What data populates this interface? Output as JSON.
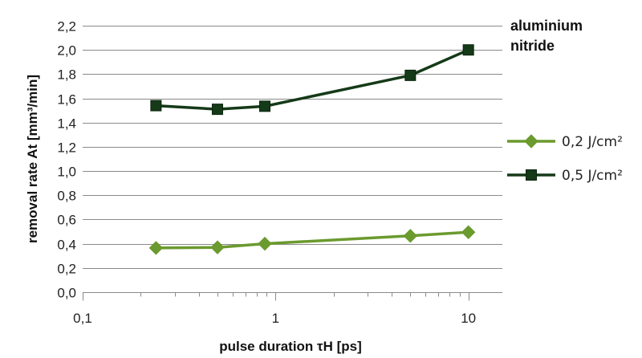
{
  "chart_data": {
    "type": "line",
    "xlabel": "pulse duration τH [ps]",
    "ylabel": "removal rate At [mm³/min]",
    "xscale": "log",
    "xlim": [
      0.1,
      15
    ],
    "ylim": [
      0.0,
      2.2
    ],
    "yticks": [
      0.0,
      0.2,
      0.4,
      0.6,
      0.8,
      1.0,
      1.2,
      1.4,
      1.6,
      1.8,
      2.0,
      2.2
    ],
    "ytick_labels": [
      "0,0",
      "0,2",
      "0,4",
      "0,6",
      "0,8",
      "1,0",
      "1,2",
      "1,4",
      "1,6",
      "1,8",
      "2,0",
      "2,2"
    ],
    "xticks": [
      0.1,
      1,
      10
    ],
    "xtick_labels": [
      "0,1",
      "1",
      "10"
    ],
    "grid": "horizontal",
    "legend_position": "right",
    "annotation": [
      "aluminium",
      "nitride"
    ],
    "series": [
      {
        "name": "0,2 J/cm²",
        "marker": "diamond",
        "color": "#6b9a2e",
        "x": [
          0.24,
          0.5,
          0.88,
          5,
          10
        ],
        "y": [
          0.365,
          0.37,
          0.4,
          0.465,
          0.495
        ]
      },
      {
        "name": "0,5 J/cm²",
        "marker": "square",
        "color": "#153a18",
        "x": [
          0.24,
          0.5,
          0.88,
          5,
          10
        ],
        "y": [
          1.54,
          1.51,
          1.535,
          1.79,
          2.0
        ]
      }
    ]
  }
}
